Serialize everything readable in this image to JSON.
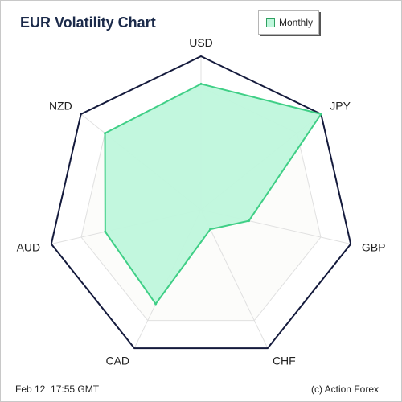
{
  "header": {
    "title": "EUR Volatility Chart"
  },
  "legend": {
    "label": "Monthly"
  },
  "footer": {
    "timestamp": "Feb 12  17:55 GMT",
    "credit": "(c) Action Forex"
  },
  "colors": {
    "series_fill": "#bff7dc",
    "series_stroke": "#3fcf86",
    "outer_ring": "#141a3c",
    "grid": "#e0e0e0",
    "title": "#1b2a4a"
  },
  "chart_data": {
    "type": "radar",
    "title": "EUR Volatility Chart",
    "categories": [
      "USD",
      "JPY",
      "GBP",
      "CHF",
      "CAD",
      "AUD",
      "NZD"
    ],
    "rmax": 100,
    "grid_levels": 5,
    "grid": true,
    "legend_position": "top-right",
    "series": [
      {
        "name": "Monthly",
        "values": [
          82,
          100,
          32,
          14,
          68,
          64,
          80
        ]
      }
    ]
  }
}
